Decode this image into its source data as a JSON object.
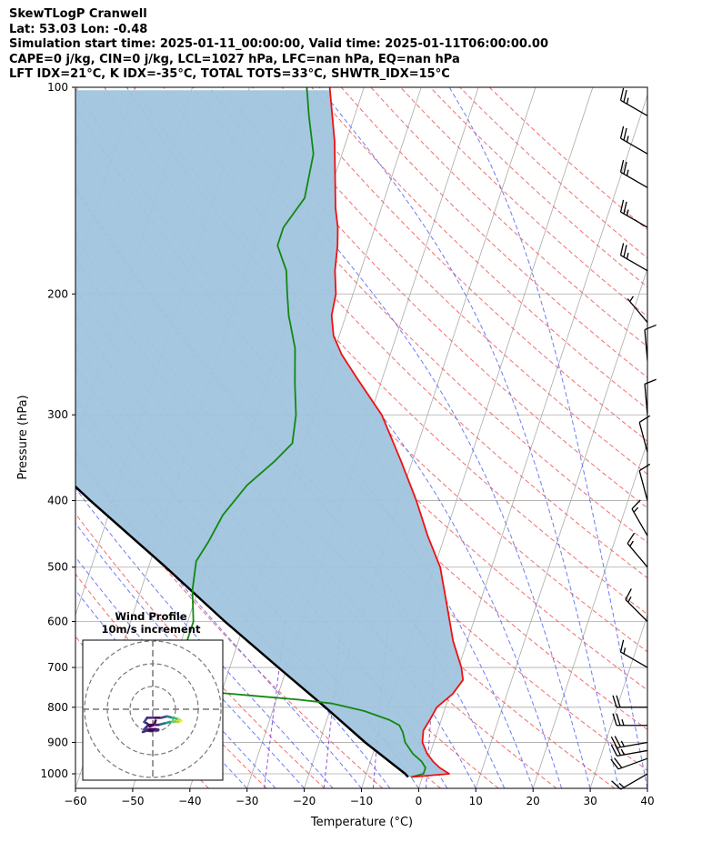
{
  "header": {
    "line1": "SkewTLogP Cranwell",
    "line2": "Lat: 53.03   Lon: -0.48",
    "line3": "Simulation start time: 2025-01-11_00:00:00, Valid time: 2025-01-11T06:00:00.00",
    "line4": "CAPE=0 j/kg, CIN=0 j/kg, LCL=1027 hPa, LFC=nan hPa, EQ=nan hPa",
    "line5": "LFT IDX=21°C, K IDX=-35°C, TOTAL TOTS=33°C, SHWTR_IDX=15°C"
  },
  "colors": {
    "temperature": "#ee1111",
    "dewpoint": "#118811",
    "parcel": "#000000",
    "cape_shade": "#a1c4de",
    "dry_adiabat": "#ee5555",
    "moist_adiabat": "#5566ee",
    "isotherm": "#aaaaaa",
    "mixing_ratio": "#8844cc"
  },
  "chart_data": {
    "type": "line",
    "subtype": "skew-t log-p",
    "xlabel": "Temperature (°C)",
    "ylabel": "Pressure (hPa)",
    "xlim": [
      -60,
      40
    ],
    "ylim": [
      1050,
      100
    ],
    "y_scale": "log",
    "x_ticks": [
      "−60",
      "−50",
      "−40",
      "−30",
      "−20",
      "−10",
      "0",
      "10",
      "20",
      "30",
      "40"
    ],
    "y_ticks": [
      1000,
      900,
      800,
      700,
      600,
      500,
      400,
      300,
      200,
      100
    ],
    "temperature_profile": [
      [
        1011,
        -2
      ],
      [
        1000,
        4.5
      ],
      [
        980,
        2.5
      ],
      [
        960,
        1
      ],
      [
        935,
        -0.5
      ],
      [
        900,
        -2
      ],
      [
        865,
        -2.5
      ],
      [
        835,
        -2
      ],
      [
        800,
        -1.5
      ],
      [
        765,
        0.5
      ],
      [
        730,
        1.5
      ],
      [
        700,
        0.5
      ],
      [
        640,
        -2.5
      ],
      [
        560,
        -6
      ],
      [
        500,
        -9
      ],
      [
        450,
        -13
      ],
      [
        400,
        -17
      ],
      [
        350,
        -22
      ],
      [
        300,
        -28
      ],
      [
        265,
        -34.5
      ],
      [
        245,
        -38.5
      ],
      [
        230,
        -41
      ],
      [
        215,
        -42.5
      ],
      [
        200,
        -43
      ],
      [
        185,
        -44.5
      ],
      [
        170,
        -45.5
      ],
      [
        160,
        -46.5
      ],
      [
        150,
        -48
      ],
      [
        120,
        -52
      ],
      [
        100,
        -56
      ]
    ],
    "dewpoint_profile": [
      [
        1011,
        -2
      ],
      [
        1000,
        0
      ],
      [
        980,
        0
      ],
      [
        960,
        -1
      ],
      [
        935,
        -3
      ],
      [
        900,
        -5
      ],
      [
        870,
        -6
      ],
      [
        850,
        -7
      ],
      [
        835,
        -9
      ],
      [
        810,
        -14
      ],
      [
        800,
        -17
      ],
      [
        790,
        -20
      ],
      [
        780,
        -26
      ],
      [
        770,
        -34
      ],
      [
        760,
        -42
      ],
      [
        745,
        -47.5
      ],
      [
        700,
        -47
      ],
      [
        650,
        -49
      ],
      [
        600,
        -49
      ],
      [
        540,
        -51
      ],
      [
        490,
        -52
      ],
      [
        460,
        -51
      ],
      [
        420,
        -50
      ],
      [
        380,
        -47.5
      ],
      [
        350,
        -44
      ],
      [
        330,
        -42
      ],
      [
        300,
        -43
      ],
      [
        270,
        -45
      ],
      [
        240,
        -47
      ],
      [
        215,
        -50
      ],
      [
        200,
        -51.5
      ],
      [
        185,
        -53
      ],
      [
        170,
        -56
      ],
      [
        160,
        -56
      ],
      [
        145,
        -54
      ],
      [
        125,
        -55
      ],
      [
        110,
        -58
      ],
      [
        100,
        -60
      ]
    ],
    "parcel_profile": [
      [
        1011,
        -2.5
      ],
      [
        1000,
        -3.2
      ],
      [
        900,
        -12
      ],
      [
        800,
        -21
      ],
      [
        700,
        -31.5
      ],
      [
        600,
        -43.5
      ],
      [
        500,
        -57
      ],
      [
        400,
        -74
      ],
      [
        300,
        -95
      ],
      [
        200,
        -123
      ],
      [
        150,
        -142
      ],
      [
        100,
        -165
      ]
    ],
    "shading": "CIN (parcel cooler than environment)",
    "winds": [
      {
        "p": 1000,
        "dir": 240,
        "kt": 15
      },
      {
        "p": 950,
        "dir": 250,
        "kt": 20
      },
      {
        "p": 925,
        "dir": 260,
        "kt": 25
      },
      {
        "p": 900,
        "dir": 260,
        "kt": 25
      },
      {
        "p": 850,
        "dir": 270,
        "kt": 25
      },
      {
        "p": 800,
        "dir": 270,
        "kt": 20
      },
      {
        "p": 700,
        "dir": 300,
        "kt": 15
      },
      {
        "p": 600,
        "dir": 315,
        "kt": 15
      },
      {
        "p": 500,
        "dir": 320,
        "kt": 15
      },
      {
        "p": 450,
        "dir": 330,
        "kt": 15
      },
      {
        "p": 400,
        "dir": 345,
        "kt": 10
      },
      {
        "p": 340,
        "dir": 345,
        "kt": 10
      },
      {
        "p": 300,
        "dir": 355,
        "kt": 10
      },
      {
        "p": 250,
        "dir": 355,
        "kt": 10
      },
      {
        "p": 220,
        "dir": 320,
        "kt": 5
      },
      {
        "p": 185,
        "dir": 300,
        "kt": 25
      },
      {
        "p": 160,
        "dir": 300,
        "kt": 25
      },
      {
        "p": 140,
        "dir": 300,
        "kt": 25
      },
      {
        "p": 125,
        "dir": 300,
        "kt": 25
      },
      {
        "p": 110,
        "dir": 300,
        "kt": 25
      }
    ],
    "hodograph": {
      "title": "Wind Profile",
      "subtitle": "10m/s increment",
      "rings": 3,
      "points": [
        [
          1,
          -4
        ],
        [
          0.5,
          -5.5
        ],
        [
          -1,
          -6
        ],
        [
          -2,
          -5
        ],
        [
          -3,
          -4.5
        ],
        [
          -2,
          -3
        ],
        [
          1,
          -3
        ],
        [
          3,
          -3
        ],
        [
          5,
          -2.5
        ],
        [
          7,
          -3
        ],
        [
          9,
          -3.5
        ],
        [
          10,
          -4
        ],
        [
          9,
          -4.5
        ],
        [
          8,
          -4.3
        ],
        [
          6,
          -4.5
        ],
        [
          4,
          -5
        ],
        [
          2,
          -5.5
        ],
        [
          0,
          -5.5
        ],
        [
          -1,
          -5.5
        ],
        [
          -2,
          -6
        ],
        [
          -3,
          -7
        ],
        [
          -1,
          -7
        ],
        [
          1,
          -7
        ],
        [
          2,
          -7.2
        ],
        [
          0,
          -7.5
        ],
        [
          -2,
          -7.5
        ],
        [
          -3.5,
          -8
        ]
      ]
    }
  }
}
